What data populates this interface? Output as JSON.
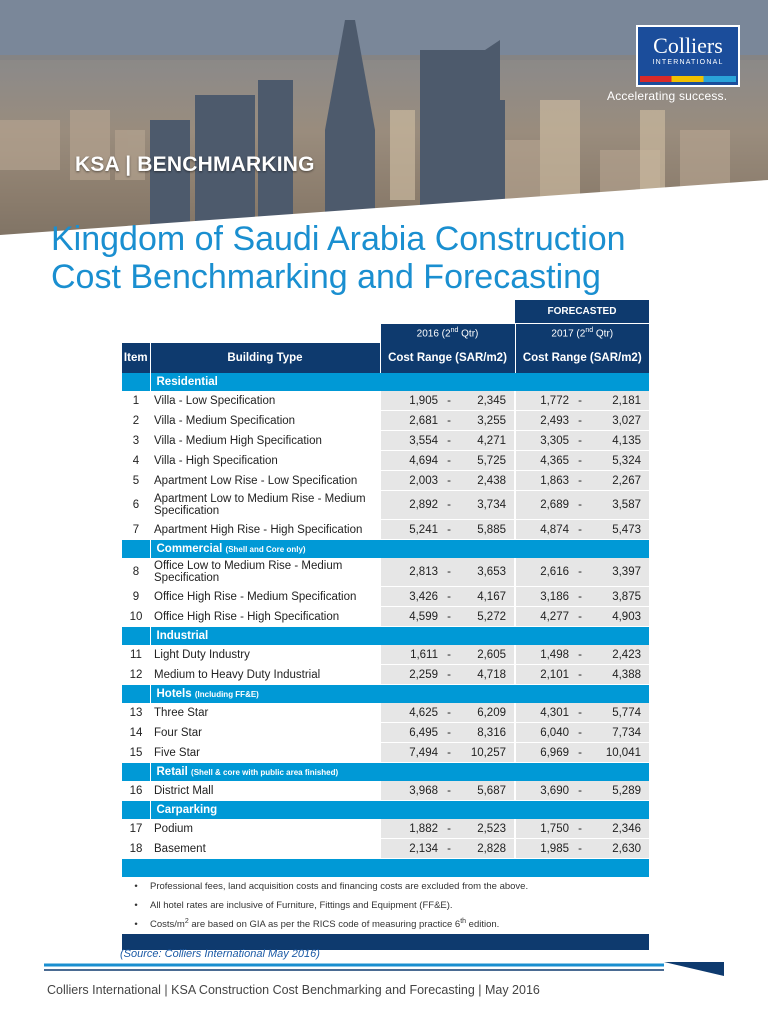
{
  "banner": {
    "title": "KSA | BENCHMARKING",
    "logo_name": "Colliers",
    "logo_sub": "INTERNATIONAL",
    "tagline": "Accelerating success."
  },
  "title_line1": "Kingdom of Saudi Arabia Construction",
  "title_line2": "Cost Benchmarking and Forecasting",
  "table": {
    "forecasted_label": "FORECASTED",
    "period_2016_year": "2016 (2",
    "period_2016_sup": "nd",
    "period_2016_tail": " Qtr)",
    "period_2017_year": "2017 (2",
    "period_2017_sup": "nd",
    "period_2017_tail": " Qtr)",
    "col_item": "Item",
    "col_building_type": "Building Type",
    "col_cost_2016": "Cost Range (SAR/m2)",
    "col_cost_2017": "Cost Range (SAR/m2)",
    "sections": [
      {
        "name": "Residential",
        "note": "",
        "rows": [
          {
            "item": "1",
            "type": "Villa - Low Specification",
            "a_lo": "1,905",
            "a_hi": "2,345",
            "b_lo": "1,772",
            "b_hi": "2,181"
          },
          {
            "item": "2",
            "type": "Villa - Medium Specification",
            "a_lo": "2,681",
            "a_hi": "3,255",
            "b_lo": "2,493",
            "b_hi": "3,027"
          },
          {
            "item": "3",
            "type": "Villa - Medium High Specification",
            "a_lo": "3,554",
            "a_hi": "4,271",
            "b_lo": "3,305",
            "b_hi": "4,135"
          },
          {
            "item": "4",
            "type": "Villa - High Specification",
            "a_lo": "4,694",
            "a_hi": "5,725",
            "b_lo": "4,365",
            "b_hi": "5,324"
          },
          {
            "item": "5",
            "type": "Apartment Low Rise - Low Specification",
            "a_lo": "2,003",
            "a_hi": "2,438",
            "b_lo": "1,863",
            "b_hi": "2,267"
          },
          {
            "item": "6",
            "type": "Apartment Low to Medium Rise - Medium Specification",
            "a_lo": "2,892",
            "a_hi": "3,734",
            "b_lo": "2,689",
            "b_hi": "3,587"
          },
          {
            "item": "7",
            "type": "Apartment High Rise - High Specification",
            "a_lo": "5,241",
            "a_hi": "5,885",
            "b_lo": "4,874",
            "b_hi": "5,473"
          }
        ]
      },
      {
        "name": "Commercial",
        "note": "(Shell and Core only)",
        "rows": [
          {
            "item": "8",
            "type": "Office Low to Medium Rise - Medium Specification",
            "a_lo": "2,813",
            "a_hi": "3,653",
            "b_lo": "2,616",
            "b_hi": "3,397"
          },
          {
            "item": "9",
            "type": "Office High Rise - Medium Specification",
            "a_lo": "3,426",
            "a_hi": "4,167",
            "b_lo": "3,186",
            "b_hi": "3,875"
          },
          {
            "item": "10",
            "type": "Office High Rise - High Specification",
            "a_lo": "4,599",
            "a_hi": "5,272",
            "b_lo": "4,277",
            "b_hi": "4,903"
          }
        ]
      },
      {
        "name": "Industrial",
        "note": "",
        "rows": [
          {
            "item": "11",
            "type": "Light Duty Industry",
            "a_lo": "1,611",
            "a_hi": "2,605",
            "b_lo": "1,498",
            "b_hi": "2,423"
          },
          {
            "item": "12",
            "type": "Medium to Heavy Duty Industrial",
            "a_lo": "2,259",
            "a_hi": "4,718",
            "b_lo": "2,101",
            "b_hi": "4,388"
          }
        ]
      },
      {
        "name": "Hotels",
        "note": "(Including FF&E)",
        "rows": [
          {
            "item": "13",
            "type": "Three Star",
            "a_lo": "4,625",
            "a_hi": "6,209",
            "b_lo": "4,301",
            "b_hi": "5,774"
          },
          {
            "item": "14",
            "type": "Four Star",
            "a_lo": "6,495",
            "a_hi": "8,316",
            "b_lo": "6,040",
            "b_hi": "7,734"
          },
          {
            "item": "15",
            "type": "Five Star",
            "a_lo": "7,494",
            "a_hi": "10,257",
            "b_lo": "6,969",
            "b_hi": "10,041"
          }
        ]
      },
      {
        "name": "Retail",
        "note": "(Shell & core with public area finished)",
        "rows": [
          {
            "item": "16",
            "type": "District Mall",
            "a_lo": "3,968",
            "a_hi": "5,687",
            "b_lo": "3,690",
            "b_hi": "5,289"
          }
        ]
      },
      {
        "name": "Carparking",
        "note": "",
        "rows": [
          {
            "item": "17",
            "type": "Podium",
            "a_lo": "1,882",
            "a_hi": "2,523",
            "b_lo": "1,750",
            "b_hi": "2,346"
          },
          {
            "item": "18",
            "type": "Basement",
            "a_lo": "2,134",
            "a_hi": "2,828",
            "b_lo": "1,985",
            "b_hi": "2,630"
          }
        ]
      }
    ],
    "range_sep": "-",
    "notes": [
      {
        "bullet": "•",
        "text": "Professional fees, land acquisition costs and financing costs are excluded from the above.",
        "sup": "",
        "tail": ""
      },
      {
        "bullet": "•",
        "text": "All hotel rates are inclusive of Furniture, Fittings and Equipment (FF&E).",
        "sup": "",
        "tail": ""
      },
      {
        "bullet": "•",
        "text": "Costs/m",
        "sup": "2",
        "tail": " are based on GIA as per the RICS code of measuring practice 6",
        "sup2": "th",
        "tail2": " edition."
      }
    ]
  },
  "source": "(Source: Colliers International May 2016)",
  "footer": "Colliers International | KSA Construction Cost Benchmarking and Forecasting | May 2016",
  "colors": {
    "title_blue": "#1a8fd0",
    "navy": "#0e3a6e",
    "section_blue": "#0099d6",
    "cell_grey": "#e6e6e6"
  }
}
